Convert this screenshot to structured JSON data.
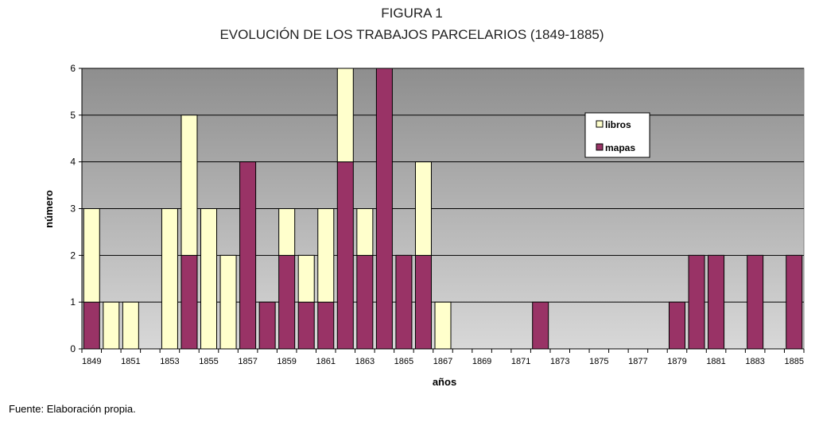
{
  "figure": {
    "title": "FIGURA 1",
    "subtitle": "EVOLUCIÓN DE LOS TRABAJOS PARCELARIOS (1849-1885)",
    "source": "Fuente: Elaboración propia."
  },
  "colors": {
    "libros": "#ffffcc",
    "mapas": "#993366",
    "plot_top": "#8e8e8e",
    "plot_bottom": "#d8d8d8"
  },
  "chart_data": {
    "type": "bar",
    "stacked": true,
    "xlabel": "años",
    "ylabel": "número",
    "ylim": [
      0,
      6
    ],
    "yticks": [
      "0",
      "1",
      "2",
      "3",
      "4",
      "5",
      "6"
    ],
    "xtick_labels": [
      "1849",
      "1851",
      "1853",
      "1855",
      "1857",
      "1859",
      "1861",
      "1863",
      "1865",
      "1867",
      "1869",
      "1871",
      "1873",
      "1875",
      "1877",
      "1879",
      "1881",
      "1883",
      "1885"
    ],
    "categories": [
      "1849",
      "1850",
      "1851",
      "1852",
      "1853",
      "1854",
      "1855",
      "1856",
      "1857",
      "1858",
      "1859",
      "1860",
      "1861",
      "1862",
      "1863",
      "1864",
      "1865",
      "1866",
      "1867",
      "1868",
      "1869",
      "1870",
      "1871",
      "1872",
      "1873",
      "1874",
      "1875",
      "1876",
      "1877",
      "1878",
      "1879",
      "1880",
      "1881",
      "1882",
      "1883",
      "1884",
      "1885"
    ],
    "series": [
      {
        "name": "mapas",
        "values": [
          1,
          0,
          0,
          0,
          0,
          2,
          0,
          0,
          4,
          1,
          2,
          1,
          1,
          4,
          2,
          6,
          2,
          2,
          0,
          0,
          0,
          0,
          0,
          1,
          0,
          0,
          0,
          0,
          0,
          0,
          1,
          2,
          2,
          0,
          2,
          0,
          2
        ]
      },
      {
        "name": "libros",
        "values": [
          2,
          1,
          1,
          0,
          3,
          3,
          3,
          2,
          0,
          0,
          1,
          1,
          2,
          2,
          1,
          0,
          0,
          2,
          1,
          0,
          0,
          0,
          0,
          0,
          0,
          0,
          0,
          0,
          0,
          0,
          0,
          0,
          0,
          0,
          0,
          0,
          0
        ]
      }
    ],
    "legend": {
      "position": "top-right",
      "entries": [
        "libros",
        "mapas"
      ]
    },
    "grid": true
  }
}
